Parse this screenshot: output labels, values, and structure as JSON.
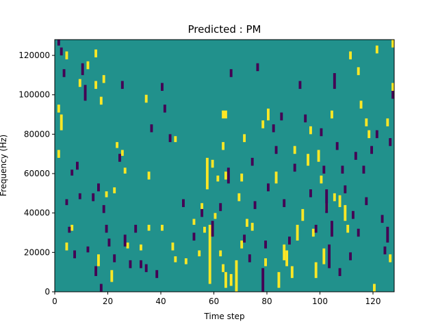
{
  "chart_data": {
    "type": "heatmap",
    "title": "Predicted : PM",
    "xlabel": "Time step",
    "ylabel": "Frequency (Hz)",
    "xlim": [
      0,
      128
    ],
    "ylim": [
      0,
      128000
    ],
    "xticks": [
      0,
      20,
      40,
      60,
      80,
      100,
      120
    ],
    "yticks": [
      0,
      20000,
      40000,
      60000,
      80000,
      100000,
      120000
    ],
    "colors": {
      "background": "#21918c",
      "high": "#fde725",
      "low": "#440154"
    },
    "cells_high": [
      [
        1,
        91000,
        4000
      ],
      [
        2,
        82000,
        8000
      ],
      [
        1,
        68000,
        4000
      ],
      [
        4,
        21000,
        4000
      ],
      [
        4,
        118000,
        4000
      ],
      [
        6,
        31000,
        3000
      ],
      [
        9,
        104000,
        4000
      ],
      [
        12,
        113000,
        4000
      ],
      [
        15,
        119000,
        4000
      ],
      [
        15,
        103000,
        4000
      ],
      [
        16,
        13000,
        6000
      ],
      [
        18,
        106000,
        4000
      ],
      [
        17,
        95000,
        4000
      ],
      [
        19,
        48000,
        3000
      ],
      [
        21,
        5000,
        6000
      ],
      [
        22,
        50000,
        3000
      ],
      [
        23,
        73000,
        3000
      ],
      [
        25,
        69000,
        3000
      ],
      [
        26,
        60000,
        3000
      ],
      [
        27,
        22000,
        3000
      ],
      [
        32,
        21000,
        3000
      ],
      [
        34,
        96000,
        4000
      ],
      [
        35,
        57000,
        4000
      ],
      [
        35,
        31000,
        3000
      ],
      [
        40,
        31000,
        3000
      ],
      [
        44,
        21000,
        4000
      ],
      [
        45,
        15000,
        3000
      ],
      [
        45,
        76000,
        3000
      ],
      [
        49,
        14000,
        3000
      ],
      [
        52,
        34000,
        3000
      ],
      [
        54,
        18000,
        3000
      ],
      [
        55,
        42000,
        3000
      ],
      [
        56,
        30000,
        3000
      ],
      [
        58,
        4000,
        30000
      ],
      [
        57,
        52000,
        16000
      ],
      [
        59,
        63000,
        4000
      ],
      [
        60,
        37000,
        3000
      ],
      [
        61,
        56000,
        3000
      ],
      [
        62,
        18000,
        3000
      ],
      [
        63,
        88000,
        4000
      ],
      [
        63,
        72000,
        4000
      ],
      [
        64,
        57000,
        4000
      ],
      [
        63,
        10000,
        4000
      ],
      [
        64,
        88000,
        4000
      ],
      [
        64,
        2000,
        8000
      ],
      [
        66,
        3000,
        6000
      ],
      [
        68,
        0,
        16000
      ],
      [
        69,
        46000,
        4000
      ],
      [
        70,
        56000,
        4000
      ],
      [
        70,
        22000,
        4000
      ],
      [
        71,
        76000,
        4000
      ],
      [
        72,
        33000,
        4000
      ],
      [
        74,
        31000,
        4000
      ],
      [
        79,
        13000,
        4000
      ],
      [
        78,
        83000,
        4000
      ],
      [
        80,
        87000,
        6000
      ],
      [
        83,
        55000,
        6000
      ],
      [
        84,
        2000,
        8000
      ],
      [
        86,
        16000,
        8000
      ],
      [
        87,
        13000,
        8000
      ],
      [
        89,
        7000,
        6000
      ],
      [
        90,
        70000,
        4000
      ],
      [
        91,
        26000,
        8000
      ],
      [
        93,
        36000,
        6000
      ],
      [
        95,
        64000,
        6000
      ],
      [
        96,
        80000,
        4000
      ],
      [
        97,
        28000,
        4000
      ],
      [
        98,
        7000,
        8000
      ],
      [
        99,
        66000,
        6000
      ],
      [
        100,
        55000,
        4000
      ],
      [
        101,
        14000,
        8000
      ],
      [
        102,
        41000,
        4000
      ],
      [
        104,
        88000,
        4000
      ],
      [
        105,
        46000,
        4000
      ],
      [
        107,
        43000,
        6000
      ],
      [
        109,
        36000,
        8000
      ],
      [
        110,
        30000,
        4000
      ],
      [
        111,
        118000,
        4000
      ],
      [
        114,
        110000,
        4000
      ],
      [
        115,
        93000,
        4000
      ],
      [
        117,
        84000,
        4000
      ],
      [
        118,
        78000,
        4000
      ],
      [
        120,
        0,
        4000
      ],
      [
        121,
        121000,
        4000
      ],
      [
        125,
        84000,
        4000
      ],
      [
        126,
        15000,
        4000
      ],
      [
        127,
        102000,
        4000
      ],
      [
        127,
        124000,
        4000
      ]
    ],
    "cells_low": [
      [
        1,
        125000,
        4000
      ],
      [
        2,
        120000,
        4000
      ],
      [
        3,
        109000,
        4000
      ],
      [
        4,
        44000,
        3000
      ],
      [
        5,
        30000,
        3000
      ],
      [
        6,
        59000,
        3000
      ],
      [
        7,
        17000,
        4000
      ],
      [
        8,
        62000,
        4000
      ],
      [
        9,
        47000,
        3000
      ],
      [
        10,
        110000,
        6000
      ],
      [
        11,
        97000,
        8000
      ],
      [
        12,
        20000,
        3000
      ],
      [
        14,
        46000,
        4000
      ],
      [
        15,
        8000,
        5000
      ],
      [
        16,
        51000,
        4000
      ],
      [
        17,
        0,
        4000
      ],
      [
        18,
        40000,
        4000
      ],
      [
        19,
        30000,
        4000
      ],
      [
        20,
        23000,
        4000
      ],
      [
        22,
        15000,
        4000
      ],
      [
        24,
        66000,
        4000
      ],
      [
        25,
        103000,
        4000
      ],
      [
        26,
        23000,
        6000
      ],
      [
        28,
        12000,
        4000
      ],
      [
        30,
        30000,
        4000
      ],
      [
        32,
        12000,
        4000
      ],
      [
        34,
        10000,
        4000
      ],
      [
        36,
        81000,
        4000
      ],
      [
        38,
        7000,
        4000
      ],
      [
        40,
        102000,
        4000
      ],
      [
        41,
        91000,
        4000
      ],
      [
        43,
        76000,
        4000
      ],
      [
        48,
        43000,
        4000
      ],
      [
        52,
        26000,
        4000
      ],
      [
        55,
        38000,
        4000
      ],
      [
        59,
        28000,
        8000
      ],
      [
        62,
        41000,
        4000
      ],
      [
        65,
        55000,
        8000
      ],
      [
        66,
        109000,
        4000
      ],
      [
        71,
        25000,
        4000
      ],
      [
        73,
        15000,
        4000
      ],
      [
        74,
        64000,
        4000
      ],
      [
        75,
        42000,
        4000
      ],
      [
        76,
        112000,
        4000
      ],
      [
        78,
        0,
        12000
      ],
      [
        79,
        22000,
        4000
      ],
      [
        80,
        51000,
        4000
      ],
      [
        82,
        81000,
        4000
      ],
      [
        83,
        70000,
        4000
      ],
      [
        85,
        87000,
        4000
      ],
      [
        86,
        43000,
        4000
      ],
      [
        88,
        24000,
        4000
      ],
      [
        90,
        61000,
        4000
      ],
      [
        92,
        103000,
        4000
      ],
      [
        94,
        86000,
        4000
      ],
      [
        96,
        48000,
        4000
      ],
      [
        98,
        30000,
        4000
      ],
      [
        100,
        79000,
        4000
      ],
      [
        101,
        60000,
        4000
      ],
      [
        102,
        40000,
        12000
      ],
      [
        103,
        12000,
        12000
      ],
      [
        104,
        28000,
        8000
      ],
      [
        105,
        103000,
        8000
      ],
      [
        106,
        72000,
        4000
      ],
      [
        107,
        8000,
        4000
      ],
      [
        108,
        60000,
        4000
      ],
      [
        109,
        50000,
        4000
      ],
      [
        111,
        16000,
        4000
      ],
      [
        112,
        37000,
        4000
      ],
      [
        113,
        67000,
        4000
      ],
      [
        114,
        28000,
        4000
      ],
      [
        116,
        60000,
        4000
      ],
      [
        117,
        44000,
        4000
      ],
      [
        119,
        70000,
        4000
      ],
      [
        121,
        78000,
        4000
      ],
      [
        123,
        35000,
        4000
      ],
      [
        124,
        19000,
        4000
      ],
      [
        125,
        25000,
        8000
      ],
      [
        126,
        74000,
        4000
      ],
      [
        127,
        98000,
        4000
      ]
    ]
  }
}
